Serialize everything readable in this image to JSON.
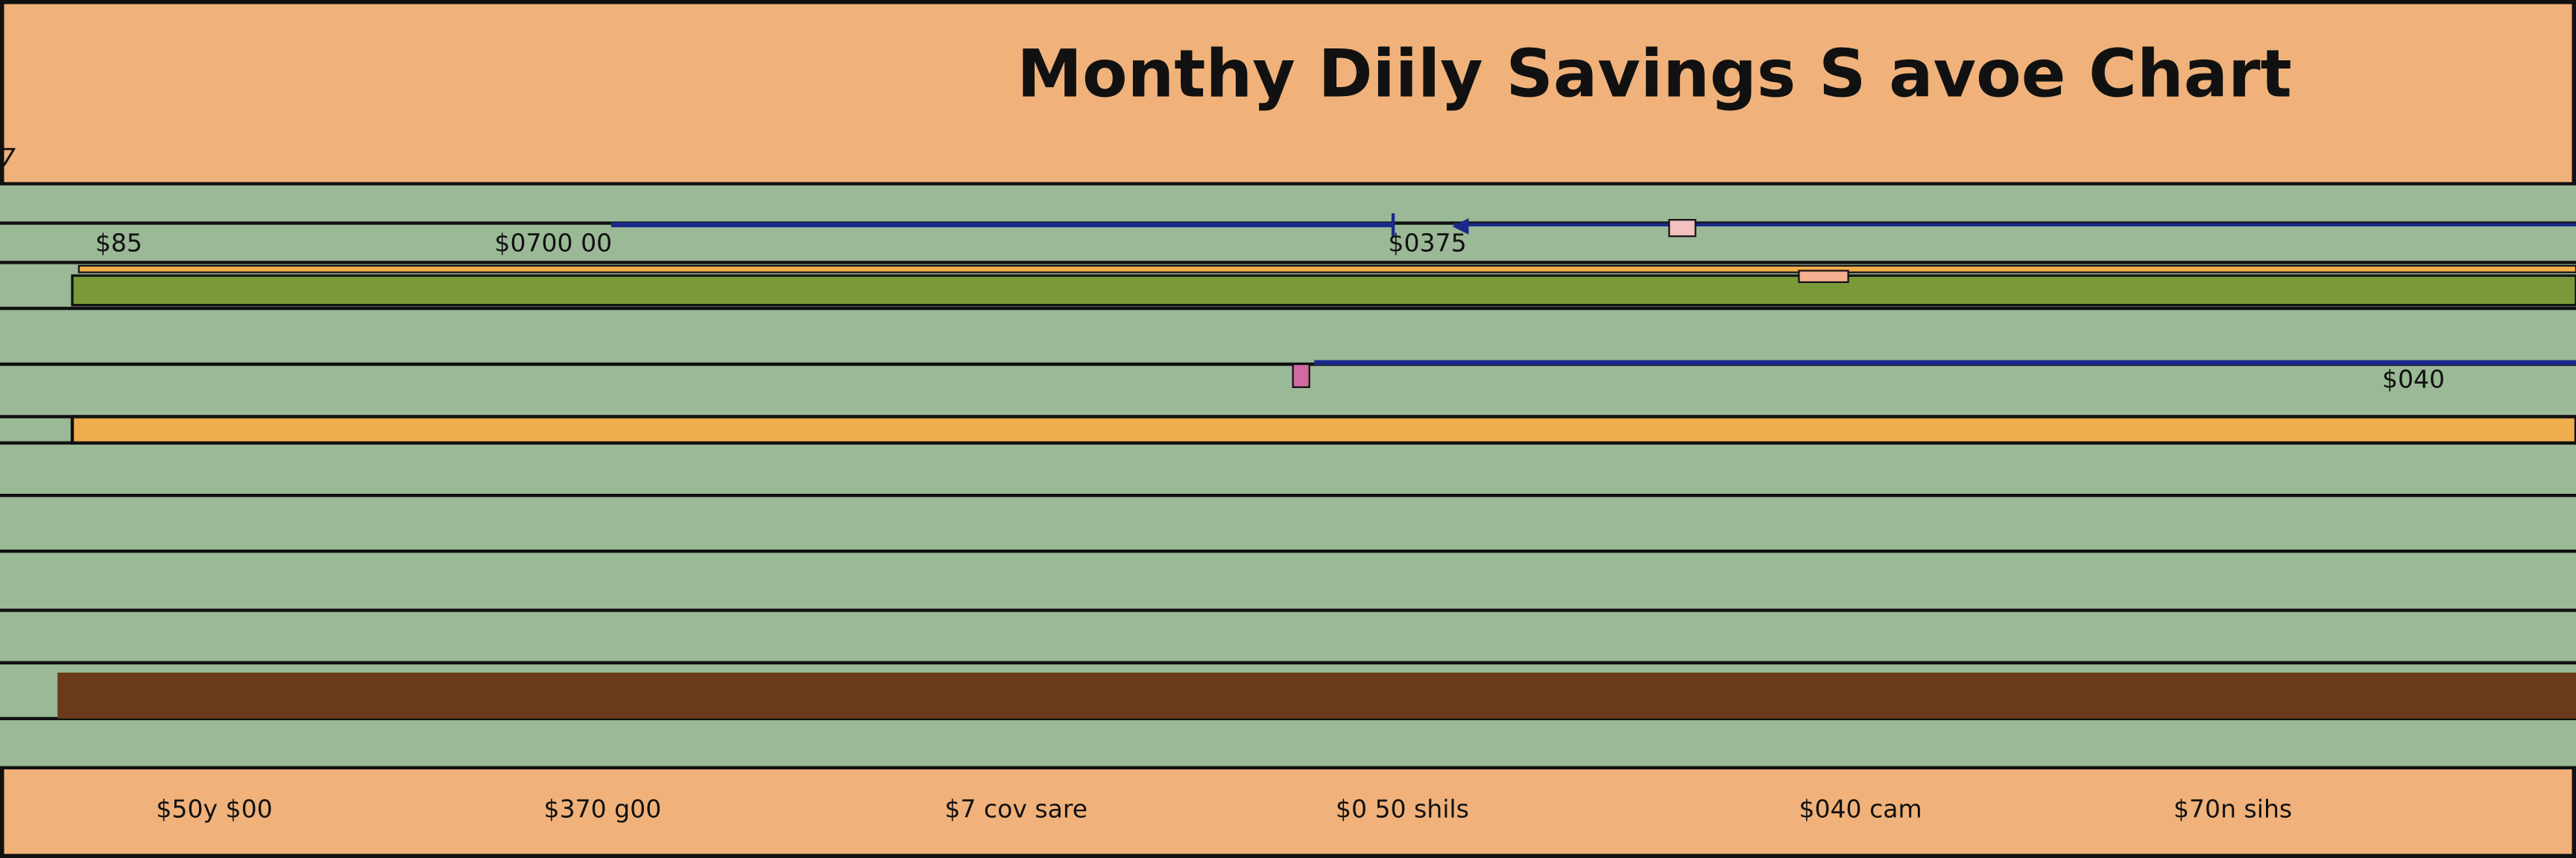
{
  "header": {
    "title": "Monthy Diily Savings S avoe Chart",
    "corner": "7"
  },
  "labels": [
    "$85",
    "$0700 00",
    "$0375",
    "$040"
  ],
  "footer": [
    "$50y $00",
    "$370 g00",
    "$7 cov sare",
    "$0 50 shils",
    "$040 cam",
    "$70n sihs"
  ]
}
